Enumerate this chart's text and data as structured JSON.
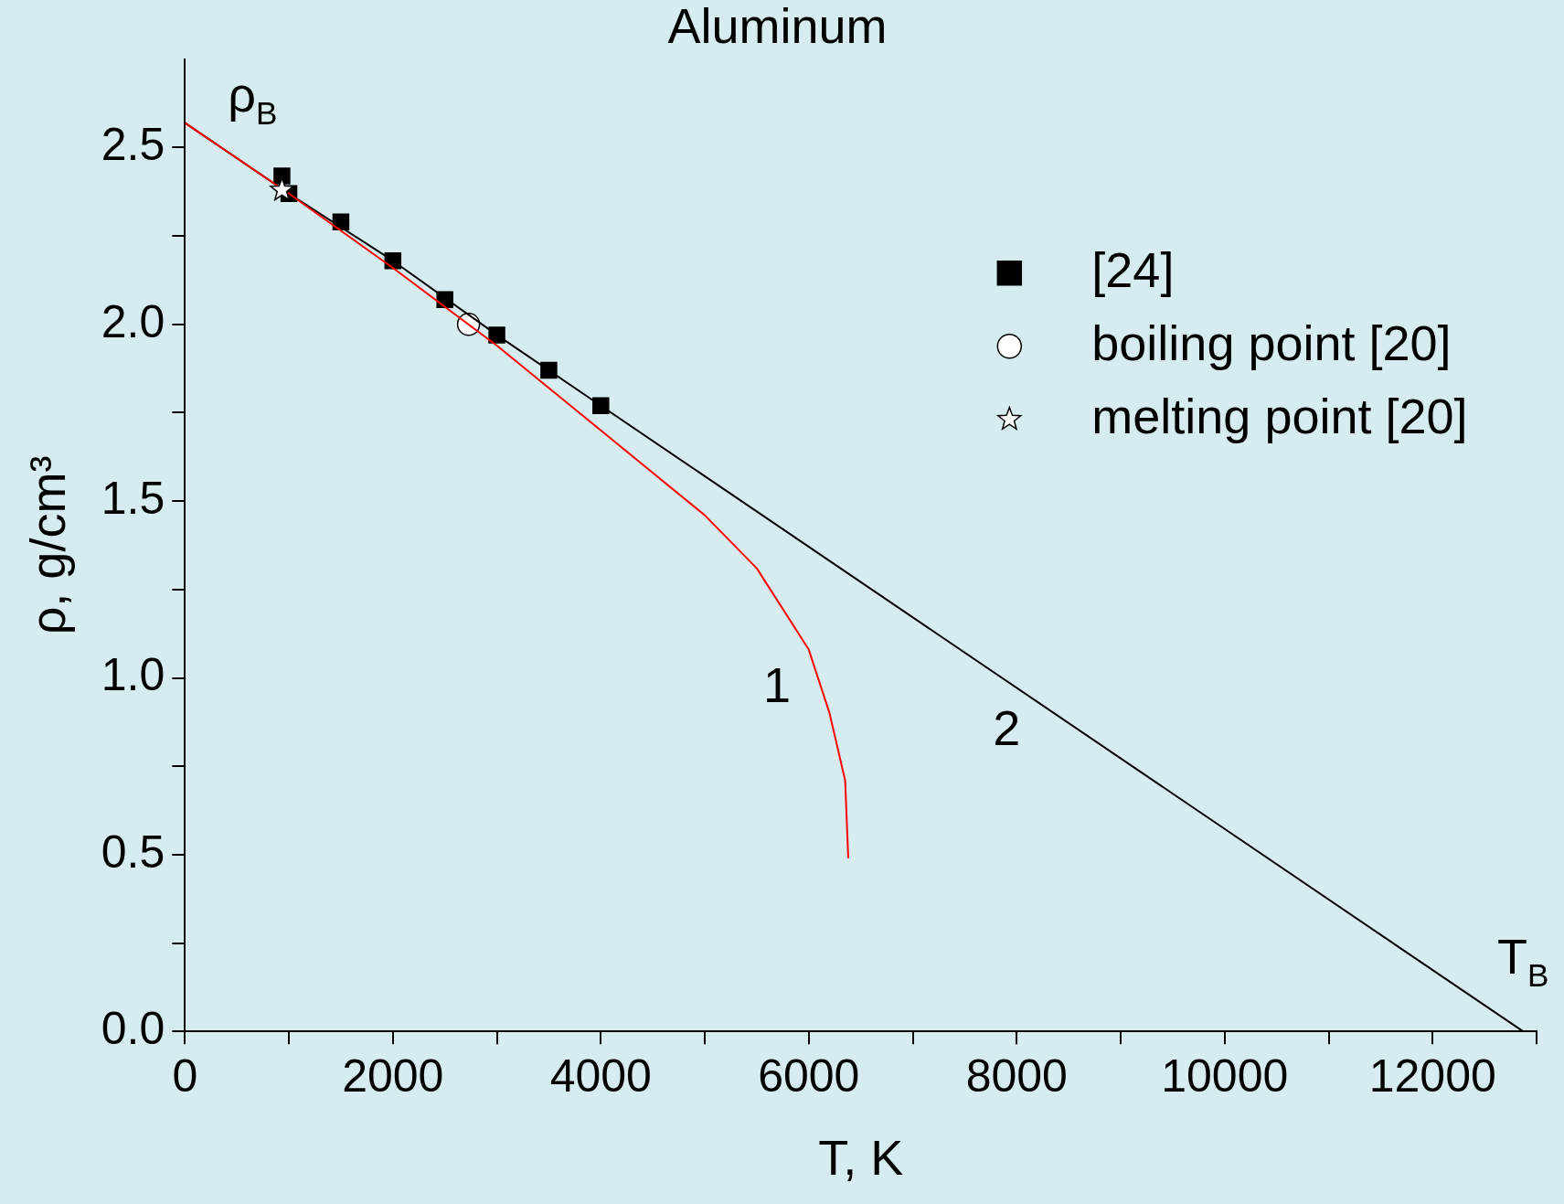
{
  "chart_data": {
    "type": "line",
    "title": "Aluminum",
    "xlabel": "T, K",
    "ylabel": "ρ, g/cm³",
    "xlim": [
      0,
      13000
    ],
    "ylim": [
      0,
      2.75
    ],
    "xticks": [
      0,
      {
        "value": 1000,
        "label": null
      },
      2000,
      {
        "value": 3000,
        "label": null
      },
      4000,
      {
        "value": 5000,
        "label": null
      },
      6000,
      {
        "value": 7000,
        "label": null
      },
      8000,
      {
        "value": 9000,
        "label": null
      },
      10000,
      {
        "value": 11000,
        "label": null
      },
      12000,
      {
        "value": 13000,
        "label": null
      }
    ],
    "yticks": [
      {
        "value": 0,
        "label": "0.0"
      },
      {
        "value": 0.25,
        "label": null
      },
      0.5,
      {
        "value": 0.75,
        "label": null
      },
      {
        "value": 1,
        "label": "1.0"
      },
      {
        "value": 1.25,
        "label": null
      },
      1.5,
      {
        "value": 1.75,
        "label": null
      },
      {
        "value": 2,
        "label": "2.0"
      },
      {
        "value": 2.25,
        "label": null
      },
      2.5
    ],
    "grid": false,
    "legend": "top right",
    "series": [
      {
        "color": "#ff0000",
        "marker": "none",
        "x": [
          0,
          1000,
          2000,
          3000,
          4000,
          5000,
          5500,
          6000,
          6200,
          6350,
          6380
        ],
        "values": [
          2.57,
          2.37,
          2.16,
          1.94,
          1.7,
          1.46,
          1.31,
          1.08,
          0.9,
          0.71,
          0.49
        ]
      },
      {
        "color": "#000000",
        "marker": "none",
        "x": [
          0,
          1000,
          2000,
          3000,
          4000,
          12870
        ],
        "values": [
          2.57,
          2.37,
          2.18,
          1.97,
          1.77,
          0
        ]
      },
      {
        "type": "scatter",
        "name": "[24]",
        "color": "#000000",
        "marker": "square",
        "x": [
          933,
          1000,
          1500,
          2000,
          2500,
          3000,
          3500,
          4000
        ],
        "values": [
          2.42,
          2.37,
          2.29,
          2.18,
          2.07,
          1.97,
          1.87,
          1.77
        ]
      },
      {
        "type": "scatter",
        "name": "boiling point [20]",
        "color": "#ffffff",
        "marker": "circle",
        "x": [
          2728
        ],
        "values": [
          2.0
        ]
      },
      {
        "type": "scatter",
        "name": "melting point [20]",
        "color": "#ffffff",
        "marker": "star",
        "x": [
          933
        ],
        "values": [
          2.38
        ]
      }
    ],
    "annotations": [
      "1",
      "2",
      "ρ$_{B}$",
      "T$_{B}$"
    ]
  }
}
